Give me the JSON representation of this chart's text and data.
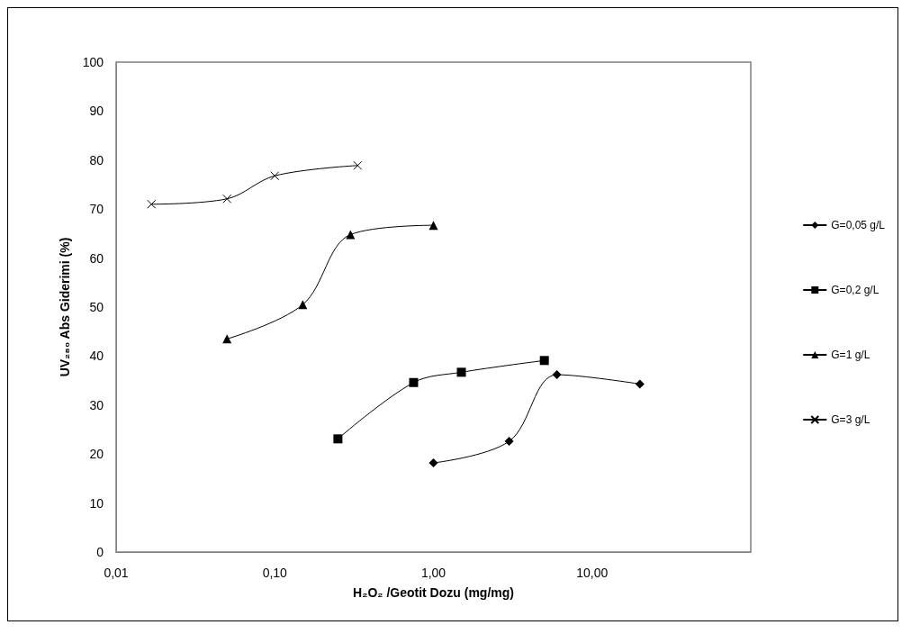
{
  "chart_data": {
    "type": "line",
    "xlabel": "H₂O₂ /Geotit Dozu (mg/mg)",
    "ylabel": "UV₂₈₀ Abs Giderimi (%)",
    "log": "x",
    "xlim": [
      0.01,
      100
    ],
    "xticks": [
      {
        "value": 0.01,
        "label": "0,01"
      },
      {
        "value": 0.1,
        "label": "0,10"
      },
      {
        "value": 1,
        "label": "1,00"
      },
      {
        "value": 10,
        "label": "10,00"
      }
    ],
    "ylim": [
      0,
      100
    ],
    "yticks": [
      0,
      10,
      20,
      30,
      40,
      50,
      60,
      70,
      80,
      90,
      100
    ],
    "grid": false,
    "legend": "right",
    "series": [
      {
        "name": "G=0,05 g/L",
        "color": "#000000",
        "marker": "diamond",
        "x": [
          1,
          3,
          6,
          20
        ],
        "values": [
          18.2,
          22.6,
          36.2,
          34.3
        ]
      },
      {
        "name": "G=0,2 g/L",
        "color": "#000000",
        "marker": "square",
        "x": [
          0.25,
          0.75,
          1.5,
          5
        ],
        "values": [
          23.1,
          34.6,
          36.7,
          39.1
        ]
      },
      {
        "name": "G=1 g/L",
        "color": "#000000",
        "marker": "triangle",
        "x": [
          0.05,
          0.15,
          0.3,
          1
        ],
        "values": [
          43.5,
          50.5,
          64.8,
          66.7
        ]
      },
      {
        "name": "G=3 g/L",
        "color": "#000000",
        "marker": "cross",
        "x": [
          0.0167,
          0.05,
          0.1,
          0.333
        ],
        "values": [
          71.0,
          72.1,
          76.8,
          78.9
        ]
      }
    ]
  }
}
